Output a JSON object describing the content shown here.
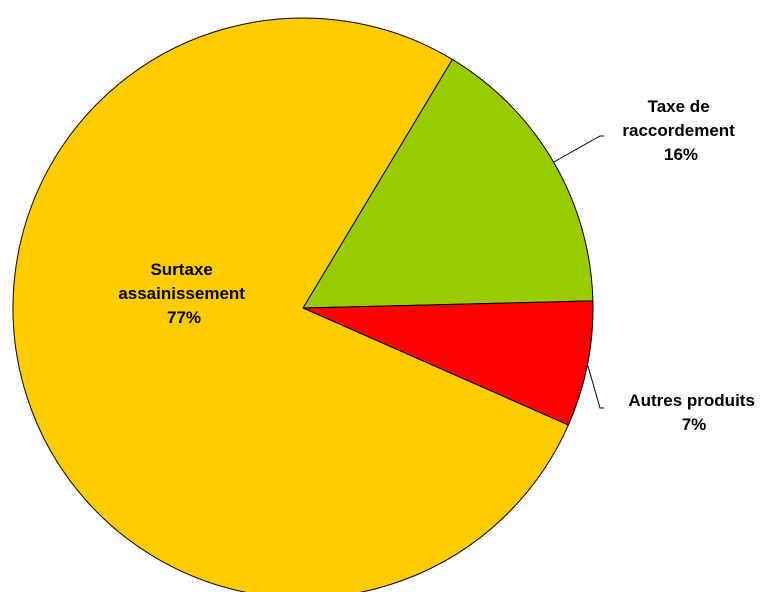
{
  "chart_data": {
    "type": "pie",
    "slices": [
      {
        "label": "Taxe de raccordement",
        "label_lines": [
          "Taxe de",
          "raccordement"
        ],
        "pct_text": "16%",
        "value": 16,
        "color": "#99CC00"
      },
      {
        "label": "Autres produits",
        "label_lines": [
          "Autres produits"
        ],
        "pct_text": "7%",
        "value": 7,
        "color": "#FF0000"
      },
      {
        "label": "Surtaxe assainissement",
        "label_lines": [
          "Surtaxe",
          "assainissement"
        ],
        "pct_text": "77%",
        "value": 77,
        "color": "#FFCC00"
      }
    ],
    "start_angle_deg": 59,
    "direction": "clockwise",
    "legend": "none",
    "outline_color": "#000000"
  }
}
